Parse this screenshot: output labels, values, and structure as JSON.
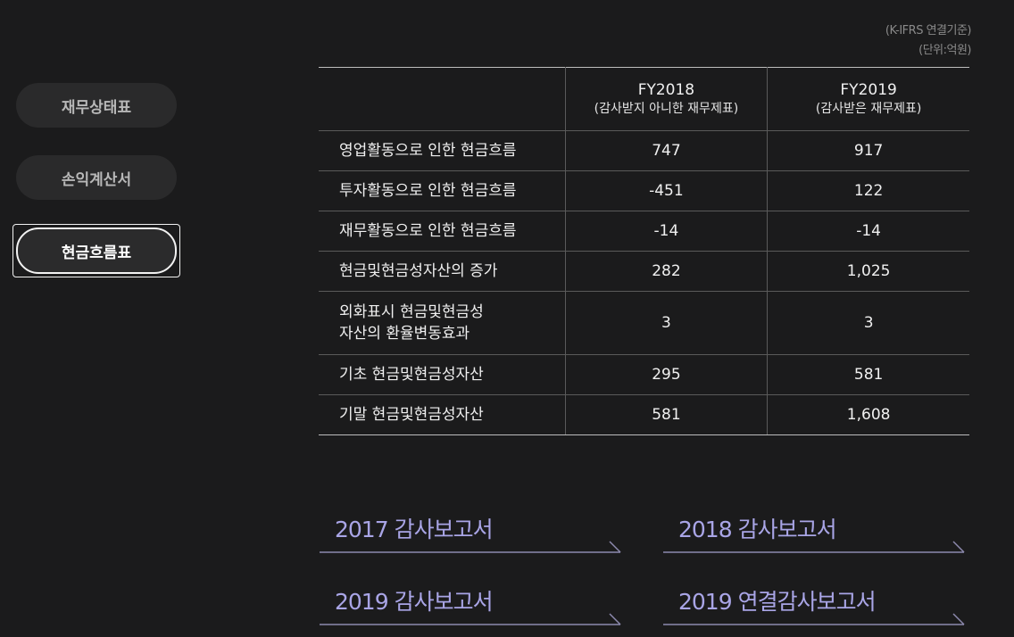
{
  "sidebar": {
    "items": [
      {
        "label": "재무상태표"
      },
      {
        "label": "손익계산서"
      },
      {
        "label": "현금흐름표"
      }
    ],
    "active_index": 2
  },
  "unit_note": {
    "line1": "(K-IFRS 연결기준)",
    "line2": "(단위:억원)"
  },
  "table": {
    "columns": [
      {
        "year": "FY2018",
        "note": "(감사받지 아니한 재무제표)"
      },
      {
        "year": "FY2019",
        "note": "(감사받은 재무제표)"
      }
    ],
    "rows": [
      {
        "label": "영업활동으로 인한 현금흐름",
        "label2": "",
        "fy2018": "747",
        "fy2019": "917"
      },
      {
        "label": "투자활동으로 인한 현금흐름",
        "label2": "",
        "fy2018": "-451",
        "fy2019": "122"
      },
      {
        "label": "재무활동으로 인한 현금흐름",
        "label2": "",
        "fy2018": "-14",
        "fy2019": "-14"
      },
      {
        "label": "현금및현금성자산의 증가",
        "label2": "",
        "fy2018": "282",
        "fy2019": "1,025"
      },
      {
        "label": "외화표시 현금및현금성",
        "label2": "자산의 환율변동효과",
        "fy2018": "3",
        "fy2019": "3"
      },
      {
        "label": "기초 현금및현금성자산",
        "label2": "",
        "fy2018": "295",
        "fy2019": "581"
      },
      {
        "label": "기말 현금및현금성자산",
        "label2": "",
        "fy2018": "581",
        "fy2019": "1,608"
      }
    ]
  },
  "reports": [
    {
      "label": "2017 감사보고서"
    },
    {
      "label": "2018 감사보고서"
    },
    {
      "label": "2019 감사보고서"
    },
    {
      "label": "2019 연결감사보고서"
    }
  ],
  "colors": {
    "background": "#1b1b1c",
    "accent_link": "#a9a5e6",
    "button_bg": "#2a2a2b"
  }
}
